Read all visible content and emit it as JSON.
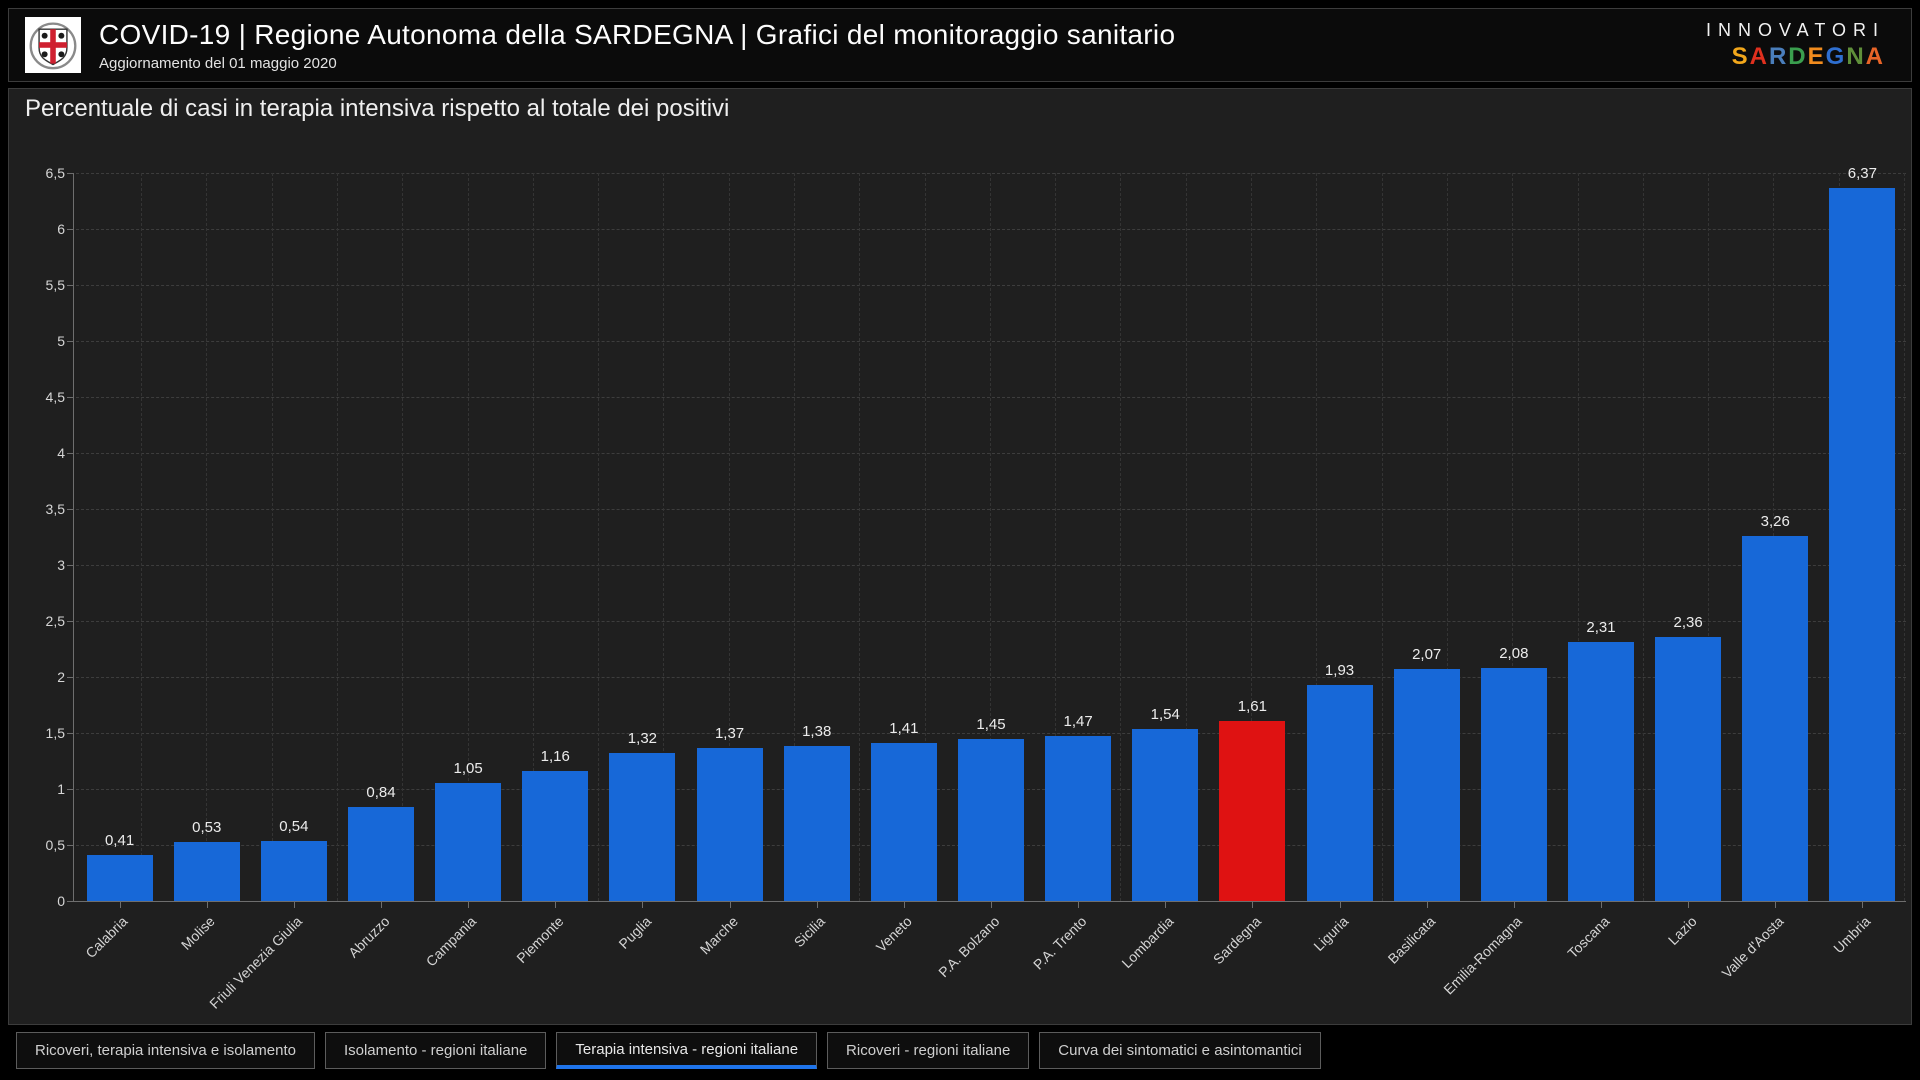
{
  "header": {
    "title": "COVID-19 | Regione Autonoma della SARDEGNA | Grafici del monitoraggio sanitario",
    "subtitle": "Aggiornamento del 01 maggio 2020",
    "logo_icon": "sardinia-crest-icon",
    "brand_top": "INNOVATORI",
    "brand_letters": [
      {
        "ch": "S",
        "color": "#F2A71B"
      },
      {
        "ch": "A",
        "color": "#E0301E"
      },
      {
        "ch": "R",
        "color": "#4A7EBB"
      },
      {
        "ch": "D",
        "color": "#3A9E4E"
      },
      {
        "ch": "E",
        "color": "#F28C1E"
      },
      {
        "ch": "G",
        "color": "#2F6FD0"
      },
      {
        "ch": "N",
        "color": "#5F8F3A"
      },
      {
        "ch": "A",
        "color": "#E86427"
      }
    ]
  },
  "chart_data": {
    "type": "bar",
    "title": "Percentuale di casi in terapia intensiva rispetto al totale dei positivi",
    "categories": [
      "Calabria",
      "Molise",
      "Friuli Venezia Giulia",
      "Abruzzo",
      "Campania",
      "Piemonte",
      "Puglia",
      "Marche",
      "Sicilia",
      "Veneto",
      "P.A. Bolzano",
      "P.A. Trento",
      "Lombardia",
      "Sardegna",
      "Liguria",
      "Basilicata",
      "Emilia-Romagna",
      "Toscana",
      "Lazio",
      "Valle d'Aosta",
      "Umbria"
    ],
    "values": [
      0.41,
      0.53,
      0.54,
      0.84,
      1.05,
      1.16,
      1.32,
      1.37,
      1.38,
      1.41,
      1.45,
      1.47,
      1.54,
      1.61,
      1.93,
      2.07,
      2.08,
      2.31,
      2.36,
      3.26,
      6.37
    ],
    "value_labels": [
      "0,41",
      "0,53",
      "0,54",
      "0,84",
      "1,05",
      "1,16",
      "1,32",
      "1,37",
      "1,38",
      "1,41",
      "1,45",
      "1,47",
      "1,54",
      "1,61",
      "1,93",
      "2,07",
      "2,08",
      "2,31",
      "2,36",
      "3,26",
      "6,37"
    ],
    "highlight_index": 13,
    "bar_color": "#1768D8",
    "highlight_color": "#DF1212",
    "xlabel": "",
    "ylabel": "",
    "ylim": [
      0,
      6.5
    ],
    "ytick_step": 0.5,
    "ytick_labels": [
      "0",
      "0,5",
      "1",
      "1,5",
      "2",
      "2,5",
      "3",
      "3,5",
      "4",
      "4,5",
      "5",
      "5,5",
      "6",
      "6,5"
    ],
    "grid": true,
    "legend": "none",
    "decimal_separator": ","
  },
  "tabs": {
    "active_index": 2,
    "active_underline_color": "#1F74EA",
    "items": [
      "Ricoveri, terapia intensiva e isolamento",
      "Isolamento - regioni italiane",
      "Terapia intensiva - regioni italiane",
      "Ricoveri - regioni italiane",
      "Curva dei sintomatici e asintomantici"
    ]
  }
}
